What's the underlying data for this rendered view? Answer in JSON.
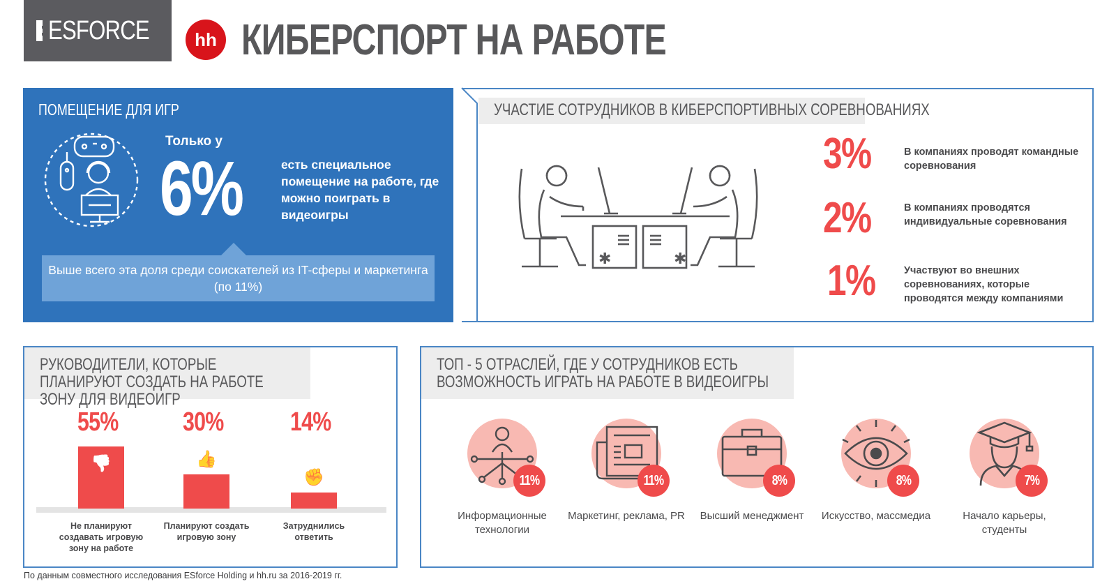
{
  "header": {
    "brand": "ESFORCE",
    "partner_logo": "hh",
    "title": "КИБЕРСПОРТ НА РАБОТЕ"
  },
  "room": {
    "title": "ПОМЕЩЕНИЕ ДЛЯ ИГР",
    "only": "Только у",
    "percent": "6%",
    "value": 6,
    "description": "есть специальное помещение на работе, где можно поиграть в видеоигры",
    "note": "Выше всего эта доля среди соискателей из IT-сферы и маркетинга (по 11%)",
    "icon": "gamer-icon"
  },
  "participation": {
    "title": "УЧАСТИЕ СОТРУДНИКОВ В КИБЕРСПОРТИВНЫХ СОРЕВНОВАНИЯХ",
    "icon": "players-at-desks-icon",
    "items": [
      {
        "percent": "3%",
        "value": 3,
        "text": "В компаниях проводят командные соревнования"
      },
      {
        "percent": "2%",
        "value": 2,
        "text": "В компаниях проводятся индивидуальные соревнования"
      },
      {
        "percent": "1%",
        "value": 1,
        "text": "Участвуют во внешних соревнованиях, которые проводятся между компаниями"
      }
    ]
  },
  "industries": {
    "title": "ТОП - 5 ОТРАСЛЕЙ, ГДЕ У СОТРУДНИКОВ ЕСТЬ ВОЗМОЖНОСТЬ ИГРАТЬ НА РАБОТЕ В ВИДЕОИГРЫ",
    "items": [
      {
        "label": "Информационные технологии",
        "percent": "11%",
        "value": 11,
        "icon": "network-person-icon"
      },
      {
        "label": "Маркетинг, реклама, PR",
        "percent": "11%",
        "value": 11,
        "icon": "newspaper-icon"
      },
      {
        "label": "Высший менеджмент",
        "percent": "8%",
        "value": 8,
        "icon": "briefcase-icon"
      },
      {
        "label": "Искусство, массмедиа",
        "percent": "8%",
        "value": 8,
        "icon": "eye-icon"
      },
      {
        "label": "Начало карьеры, студенты",
        "percent": "7%",
        "value": 7,
        "icon": "graduate-icon"
      }
    ]
  },
  "chart_data": {
    "type": "bar",
    "title": "РУКОВОДИТЕЛИ, КОТОРЫЕ ПЛАНИРУЮТ СОЗДАТЬ НА РАБОТЕ ЗОНУ ДЛЯ ВИДЕОИГР",
    "categories": [
      "Не планируют создавать игровую зону на работе",
      "Планируют создать игровую зону",
      "Затруднились ответить"
    ],
    "values": [
      55,
      30,
      14
    ],
    "labels": [
      "55%",
      "30%",
      "14%"
    ],
    "icons": [
      "thumbs-down-icon",
      "thumbs-up-icon",
      "fist-icon"
    ],
    "ylim": [
      0,
      55
    ],
    "color": "#ef4b4b",
    "grid": false
  },
  "footnote": "По данным совместного исследования ESforce Holding и hh.ru за 2016-2019 гг.",
  "colors": {
    "blue": "#2f73bb",
    "red": "#ef4b4b",
    "pink": "#f8b9b2",
    "gray": "#5b5b5f"
  }
}
